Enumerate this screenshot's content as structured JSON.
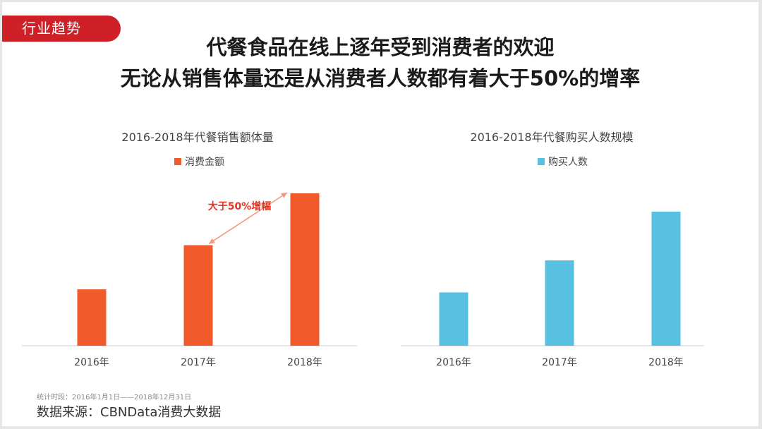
{
  "tag": "行业趋势",
  "headline": {
    "line1": "代餐食品在线上逐年受到消费者的欢迎",
    "line2": "无论从销售体量还是从消费者人数都有着大于50%的增率"
  },
  "colors": {
    "tag": "#cf2027",
    "sales": "#f15a2b",
    "buyers": "#58c1e2",
    "annotation": "#e8331f"
  },
  "chart_data": [
    {
      "type": "bar",
      "title": "2016-2018年代餐销售额体量",
      "categories": [
        "2016年",
        "2017年",
        "2018年"
      ],
      "series": [
        {
          "name": "消费金额",
          "values": [
            37,
            66,
            100
          ]
        }
      ],
      "annotation": "大于50%增幅",
      "ylim": [
        0,
        100
      ],
      "grid": false,
      "legend": "top-center"
    },
    {
      "type": "bar",
      "title": "2016-2018年代餐购买人数规模",
      "categories": [
        "2016年",
        "2017年",
        "2018年"
      ],
      "series": [
        {
          "name": "购买人数",
          "values": [
            35,
            56,
            88
          ]
        }
      ],
      "ylim": [
        0,
        100
      ],
      "grid": false,
      "legend": "top-center"
    }
  ],
  "footnote": {
    "period": "统计时段：2016年1月1日——2018年12月31日",
    "source": "数据来源：CBNData消费大数据"
  }
}
